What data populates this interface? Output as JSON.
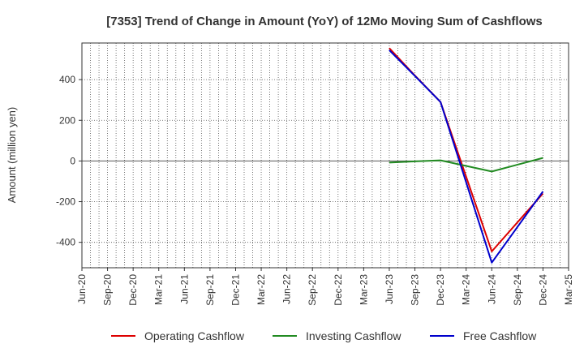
{
  "chart_data": {
    "type": "line",
    "title": "[7353]  Trend of Change in Amount (YoY) of 12Mo Moving Sum of Cashflows",
    "xlabel": "",
    "ylabel": "Amount (million yen)",
    "categories": [
      "Jun-20",
      "Sep-20",
      "Dec-20",
      "Mar-21",
      "Jun-21",
      "Sep-21",
      "Dec-21",
      "Mar-22",
      "Jun-22",
      "Sep-22",
      "Dec-22",
      "Mar-23",
      "Jun-23",
      "Sep-23",
      "Dec-23",
      "Mar-24",
      "Jun-24",
      "Sep-24",
      "Dec-24",
      "Mar-25"
    ],
    "ylim": [
      -525,
      580
    ],
    "yticks": [
      -400,
      -200,
      0,
      200,
      400
    ],
    "grid": true,
    "legend_position": "bottom",
    "series": [
      {
        "name": "Operating Cashflow",
        "color": "#dd0000",
        "points": [
          [
            "Jun-23",
            555
          ],
          [
            "Sep-23",
            420
          ],
          [
            "Dec-23",
            290
          ],
          [
            "Jun-24",
            -445
          ],
          [
            "Dec-24",
            -160
          ]
        ]
      },
      {
        "name": "Investing Cashflow",
        "color": "#228b22",
        "points": [
          [
            "Jun-23",
            -8
          ],
          [
            "Sep-23",
            -2
          ],
          [
            "Dec-23",
            3
          ],
          [
            "Jun-24",
            -52
          ],
          [
            "Dec-24",
            15
          ]
        ]
      },
      {
        "name": "Free Cashflow",
        "color": "#0000cc",
        "points": [
          [
            "Jun-23",
            545
          ],
          [
            "Sep-23",
            418
          ],
          [
            "Dec-23",
            290
          ],
          [
            "Jun-24",
            -500
          ],
          [
            "Dec-24",
            -150
          ]
        ]
      }
    ]
  }
}
